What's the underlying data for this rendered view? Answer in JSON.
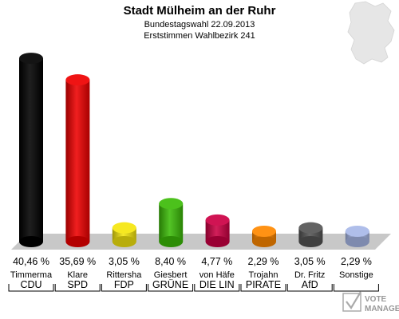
{
  "header": {
    "title": "Stadt Mülheim an der Ruhr",
    "subtitle1": "Bundestagswahl 22.09.2013",
    "subtitle2": "Erststimmen Wahlbezirk 241"
  },
  "logo": {
    "text": "VOTE",
    "subtext": "MANAGER"
  },
  "chart_data": {
    "type": "bar",
    "title": "Stadt Mülheim an der Ruhr",
    "subtitle": [
      "Bundestagswahl 22.09.2013",
      "Erststimmen Wahlbezirk 241"
    ],
    "ylim": [
      0,
      41
    ],
    "grid": false,
    "categories": [
      "CDU",
      "SPD",
      "FDP",
      "GRÜNE",
      "DIE LINKE",
      "PIRATEN",
      "AfD",
      "Sonstige"
    ],
    "candidates": [
      "Timmerma",
      "Klare",
      "Rittersha",
      "Giesbert",
      "von Häfe",
      "Trojahn",
      "Dr. Fritz",
      "Sonstige"
    ],
    "party_labels": [
      "CDU",
      "SPD",
      "FDP",
      "GRÜNE",
      "DIE LIN",
      "PIRATE",
      "AfD",
      ""
    ],
    "values": [
      40.46,
      35.69,
      3.05,
      8.4,
      4.77,
      2.29,
      3.05,
      2.29
    ],
    "value_labels": [
      "40,46 %",
      "35,69 %",
      "3,05 %",
      "8,40 %",
      "4,77 %",
      "2,29 %",
      "3,05 %",
      "2,29 %"
    ],
    "colors": [
      "#000000",
      "#ee0000",
      "#f5e60e",
      "#3cbc08",
      "#cc0044",
      "#ff8800",
      "#555555",
      "#a8b8e8"
    ]
  }
}
